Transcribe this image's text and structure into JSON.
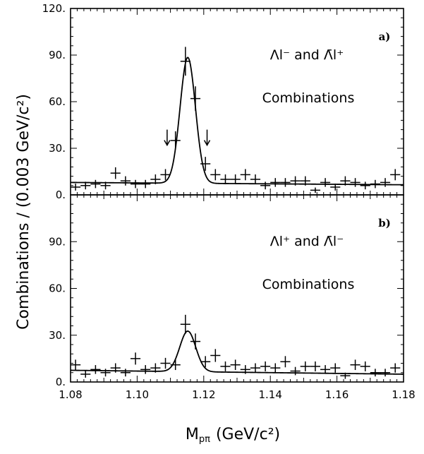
{
  "chart_data": {
    "type": "scatter",
    "ylabel": "Combinations / (0.003 GeV/c²)",
    "xlabel_main": "M",
    "xlabel_sub": "pπ",
    "xlabel_unit": "(GeV/c²)",
    "xlim": [
      1.08,
      1.18
    ],
    "x_ticks": [
      "1.08",
      "1.10",
      "1.12",
      "1.14",
      "1.16",
      "1.18"
    ],
    "panels": [
      {
        "label": "a)",
        "annotation_line1": "Λl⁻ and Λ̄l⁺",
        "annotation_line2": "Combinations",
        "ylim": [
          0,
          120
        ],
        "y_ticks": [
          "0.",
          "30.",
          "60.",
          "90.",
          "120."
        ],
        "arrows_x": [
          1.109,
          1.121
        ],
        "points": {
          "x": [
            1.0815,
            1.0845,
            1.0875,
            1.0905,
            1.0935,
            1.0965,
            1.0995,
            1.1025,
            1.1055,
            1.1085,
            1.1115,
            1.1145,
            1.1175,
            1.1205,
            1.1235,
            1.1265,
            1.1295,
            1.1325,
            1.1355,
            1.1385,
            1.1415,
            1.1445,
            1.1475,
            1.1505,
            1.1535,
            1.1565,
            1.1595,
            1.1625,
            1.1655,
            1.1685,
            1.1715,
            1.1745,
            1.1775
          ],
          "y": [
            5,
            6,
            7,
            6,
            14,
            9,
            7,
            7,
            10,
            13,
            35,
            86,
            62,
            20,
            13,
            10,
            10,
            13,
            10,
            6,
            8,
            8,
            9,
            9,
            3,
            8,
            5,
            9,
            8,
            6,
            7,
            8,
            13
          ]
        },
        "fit": {
          "background_start": 8,
          "background_end": 6.5,
          "peak_center": 1.1152,
          "peak_amplitude": 81,
          "peak_sigma": 0.0023
        }
      },
      {
        "label": "b)",
        "annotation_line1": "Λl⁺ and Λ̄l⁻",
        "annotation_line2": "Combinations",
        "ylim": [
          0,
          120
        ],
        "y_ticks": [
          "0.",
          "30.",
          "60.",
          "90."
        ],
        "points": {
          "x": [
            1.0815,
            1.0845,
            1.0875,
            1.0905,
            1.0935,
            1.0965,
            1.0995,
            1.1025,
            1.1055,
            1.1085,
            1.1115,
            1.1145,
            1.1175,
            1.1205,
            1.1235,
            1.1265,
            1.1295,
            1.1325,
            1.1355,
            1.1385,
            1.1415,
            1.1445,
            1.1475,
            1.1505,
            1.1535,
            1.1565,
            1.1595,
            1.1625,
            1.1655,
            1.1685,
            1.1715,
            1.1745,
            1.1775
          ],
          "y": [
            11,
            5,
            8,
            6,
            9,
            6,
            15,
            8,
            9,
            12,
            11,
            37,
            26,
            13,
            17,
            10,
            11,
            8,
            9,
            10,
            9,
            13,
            7,
            10,
            10,
            8,
            9,
            4,
            11,
            10,
            6,
            6,
            9
          ]
        },
        "fit": {
          "background_start": 7.5,
          "background_end": 5,
          "peak_center": 1.1152,
          "peak_amplitude": 26,
          "peak_sigma": 0.0024
        }
      }
    ]
  }
}
